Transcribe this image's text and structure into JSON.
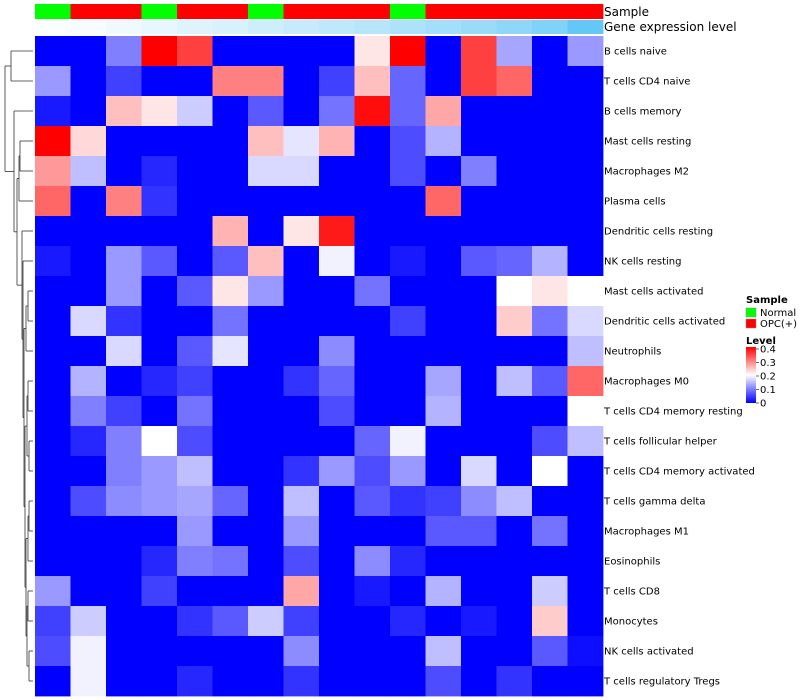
{
  "chart_data": {
    "type": "heatmap",
    "row_labels": [
      "B cells naive",
      "T cells CD4 naive",
      "B cells memory",
      "Mast cells resting",
      "Macrophages M2",
      "Plasma cells",
      "Dendritic cells resting",
      "NK cells resting",
      "Mast cells activated",
      "Dendritic cells activated",
      "Neutrophils",
      "Macrophages M0",
      "T cells CD4 memory resting",
      "T cells follicular helper",
      "T cells CD4 memory activated",
      "T cells gamma delta",
      "Macrophages M1",
      "Eosinophils",
      "T cells CD8",
      "Monocytes",
      "NK cells activated",
      "T cells regulatory  Tregs"
    ],
    "annotation_tracks": [
      {
        "name": "Sample",
        "values": [
          "Normal",
          "OPC(+)",
          "OPC(+)",
          "Normal",
          "OPC(+)",
          "OPC(+)",
          "Normal",
          "OPC(+)",
          "OPC(+)",
          "OPC(+)",
          "Normal",
          "OPC(+)",
          "OPC(+)",
          "OPC(+)",
          "OPC(+)",
          "OPC(+)"
        ]
      },
      {
        "name": "Gene expression level",
        "values": [
          0.02,
          0.05,
          0.09,
          0.13,
          0.18,
          0.22,
          0.27,
          0.31,
          0.36,
          0.4,
          0.45,
          0.51,
          0.56,
          0.62,
          0.71,
          0.86
        ]
      }
    ],
    "matrix": [
      [
        0,
        0,
        0.1,
        0.4,
        0.35,
        0,
        0,
        0,
        0,
        0.22,
        0.4,
        0,
        0.35,
        0.13,
        0,
        0.12
      ],
      [
        0.12,
        0,
        0.05,
        0,
        0,
        0.3,
        0.3,
        0,
        0.05,
        0.25,
        0.08,
        0,
        0.35,
        0.32,
        0,
        0
      ],
      [
        0.02,
        0,
        0.25,
        0.22,
        0.16,
        0,
        0.07,
        0,
        0.09,
        0.39,
        0.08,
        0.27,
        0,
        0,
        0,
        0
      ],
      [
        0.4,
        0.23,
        0,
        0,
        0,
        0,
        0.25,
        0.18,
        0.26,
        0,
        0.06,
        0.14,
        0,
        0,
        0,
        0
      ],
      [
        0.28,
        0.15,
        0,
        0.03,
        0,
        0,
        0.17,
        0.17,
        0,
        0,
        0.06,
        0,
        0.1,
        0,
        0,
        0
      ],
      [
        0.32,
        0,
        0.3,
        0.04,
        0,
        0,
        0,
        0,
        0,
        0,
        0,
        0.32,
        0,
        0,
        0,
        0
      ],
      [
        0,
        0,
        0,
        0,
        0,
        0.26,
        0,
        0.22,
        0.38,
        0,
        0,
        0,
        0,
        0,
        0,
        0
      ],
      [
        0.02,
        0,
        0.12,
        0.07,
        0,
        0.07,
        0.25,
        0,
        0.19,
        0,
        0.02,
        0,
        0.07,
        0.08,
        0.14,
        0
      ],
      [
        0,
        0,
        0.12,
        0,
        0.07,
        0.22,
        0.12,
        0,
        0,
        0.09,
        0,
        0,
        0,
        0.2,
        0.22,
        0.2
      ],
      [
        0,
        0.17,
        0.04,
        0,
        0,
        0.09,
        0,
        0,
        0,
        0,
        0.05,
        0,
        0,
        0.24,
        0.09,
        0.17
      ],
      [
        0,
        0,
        0.17,
        0,
        0.07,
        0.18,
        0,
        0,
        0.11,
        0,
        0,
        0,
        0,
        0,
        0,
        0.15
      ],
      [
        0,
        0.14,
        0,
        0.03,
        0.05,
        0,
        0,
        0.04,
        0.08,
        0,
        0,
        0.13,
        0,
        0.15,
        0.07,
        0.32
      ],
      [
        0,
        0.1,
        0.05,
        0,
        0.09,
        0,
        0,
        0,
        0.06,
        0,
        0,
        0.14,
        0,
        0,
        0,
        0.2
      ],
      [
        0,
        0.03,
        0.1,
        0.2,
        0.06,
        0,
        0,
        0,
        0,
        0.08,
        0.19,
        0,
        0,
        0,
        0.06,
        0.15
      ],
      [
        0,
        0,
        0.1,
        0.12,
        0.15,
        0,
        0,
        0.04,
        0.12,
        0.06,
        0.12,
        0,
        0.17,
        0,
        0.2,
        0
      ],
      [
        0,
        0.06,
        0.11,
        0.12,
        0.13,
        0.08,
        0,
        0.15,
        0,
        0.07,
        0.04,
        0.05,
        0.11,
        0.15,
        0,
        0
      ],
      [
        0,
        0,
        0,
        0,
        0.12,
        0,
        0,
        0.12,
        0,
        0,
        0,
        0.07,
        0.07,
        0,
        0.09,
        0
      ],
      [
        0,
        0,
        0,
        0.03,
        0.1,
        0.09,
        0,
        0.06,
        0,
        0.11,
        0.03,
        0,
        0,
        0,
        0,
        0
      ],
      [
        0.12,
        0,
        0,
        0.05,
        0,
        0,
        0,
        0.27,
        0,
        0.02,
        0,
        0.14,
        0,
        0,
        0.16,
        0
      ],
      [
        0.05,
        0.16,
        0,
        0,
        0.04,
        0.07,
        0.16,
        0.05,
        0,
        0,
        0.03,
        0,
        0.02,
        0,
        0.24,
        0
      ],
      [
        0.06,
        0.19,
        0,
        0,
        0,
        0,
        0,
        0.11,
        0,
        0,
        0,
        0.15,
        0,
        0,
        0.07,
        0.01
      ],
      [
        0,
        0.19,
        0,
        0,
        0.03,
        0,
        0,
        0.04,
        0,
        0,
        0,
        0.06,
        0,
        0.04,
        0,
        0
      ]
    ],
    "color_scale": {
      "min": 0,
      "max": 0.4,
      "colors": [
        "#0000ff",
        "#ffffff",
        "#ff0000"
      ]
    },
    "legend": {
      "sample_title": "Sample",
      "sample_items": [
        {
          "label": "Normal",
          "color": "#00ff00"
        },
        {
          "label": "OPC(+)",
          "color": "#ff0000"
        }
      ],
      "level_title": "Level",
      "level_ticks": [
        "0.4",
        "0.3",
        "0.2",
        "0.1",
        "0"
      ]
    }
  }
}
